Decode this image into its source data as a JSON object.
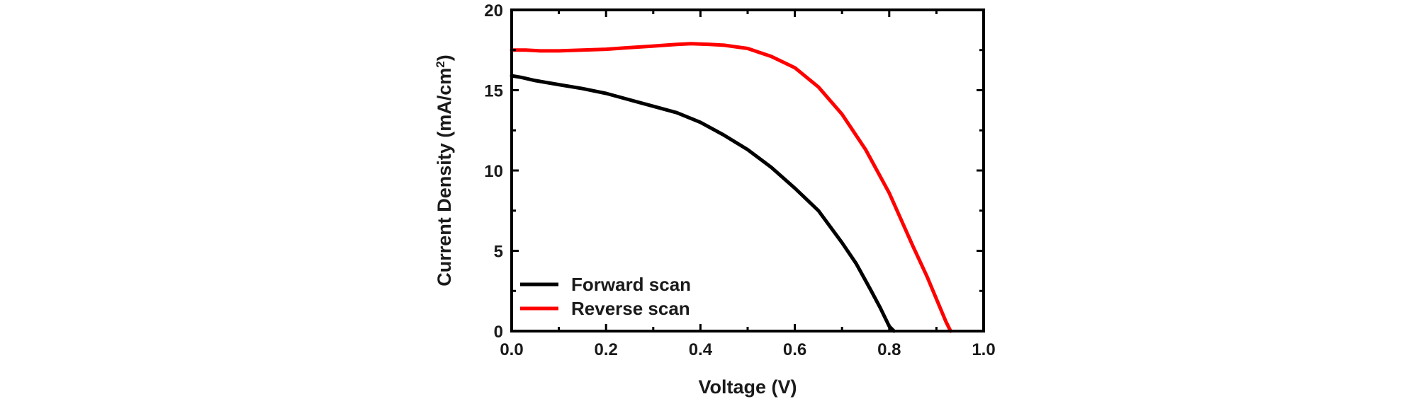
{
  "chart_data": {
    "type": "line",
    "xlabel": "Voltage (V)",
    "ylabel": {
      "prefix": "Current Density (mA/cm",
      "superscript": "2",
      "suffix": ")"
    },
    "xlim": [
      0.0,
      1.0
    ],
    "ylim": [
      0,
      20
    ],
    "xticks": [
      0.0,
      0.2,
      0.4,
      0.6,
      0.8,
      1.0
    ],
    "xtick_labels": [
      "0.0",
      "0.2",
      "0.4",
      "0.6",
      "0.8",
      "1.0"
    ],
    "yticks": [
      0,
      5,
      10,
      15,
      20
    ],
    "ytick_labels": [
      "0",
      "5",
      "10",
      "15",
      "20"
    ],
    "grid": false,
    "legend_position": "bottom-left",
    "series": [
      {
        "name": "Forward scan",
        "color": "#000000",
        "x": [
          0.0,
          0.02,
          0.05,
          0.1,
          0.15,
          0.2,
          0.25,
          0.3,
          0.35,
          0.4,
          0.45,
          0.5,
          0.55,
          0.6,
          0.65,
          0.7,
          0.73,
          0.76,
          0.78,
          0.8,
          0.81
        ],
        "y": [
          15.9,
          15.8,
          15.6,
          15.35,
          15.1,
          14.8,
          14.4,
          14.0,
          13.6,
          13.0,
          12.2,
          11.3,
          10.2,
          8.9,
          7.5,
          5.5,
          4.2,
          2.6,
          1.5,
          0.3,
          0.0
        ]
      },
      {
        "name": "Reverse scan",
        "color": "#ff0000",
        "x": [
          0.0,
          0.03,
          0.06,
          0.1,
          0.15,
          0.2,
          0.25,
          0.3,
          0.35,
          0.38,
          0.42,
          0.45,
          0.5,
          0.55,
          0.6,
          0.65,
          0.7,
          0.75,
          0.8,
          0.85,
          0.88,
          0.9,
          0.92,
          0.93
        ],
        "y": [
          17.5,
          17.5,
          17.45,
          17.45,
          17.5,
          17.55,
          17.65,
          17.75,
          17.85,
          17.9,
          17.85,
          17.8,
          17.6,
          17.1,
          16.4,
          15.2,
          13.5,
          11.3,
          8.6,
          5.3,
          3.4,
          2.0,
          0.6,
          0.0
        ]
      }
    ]
  }
}
